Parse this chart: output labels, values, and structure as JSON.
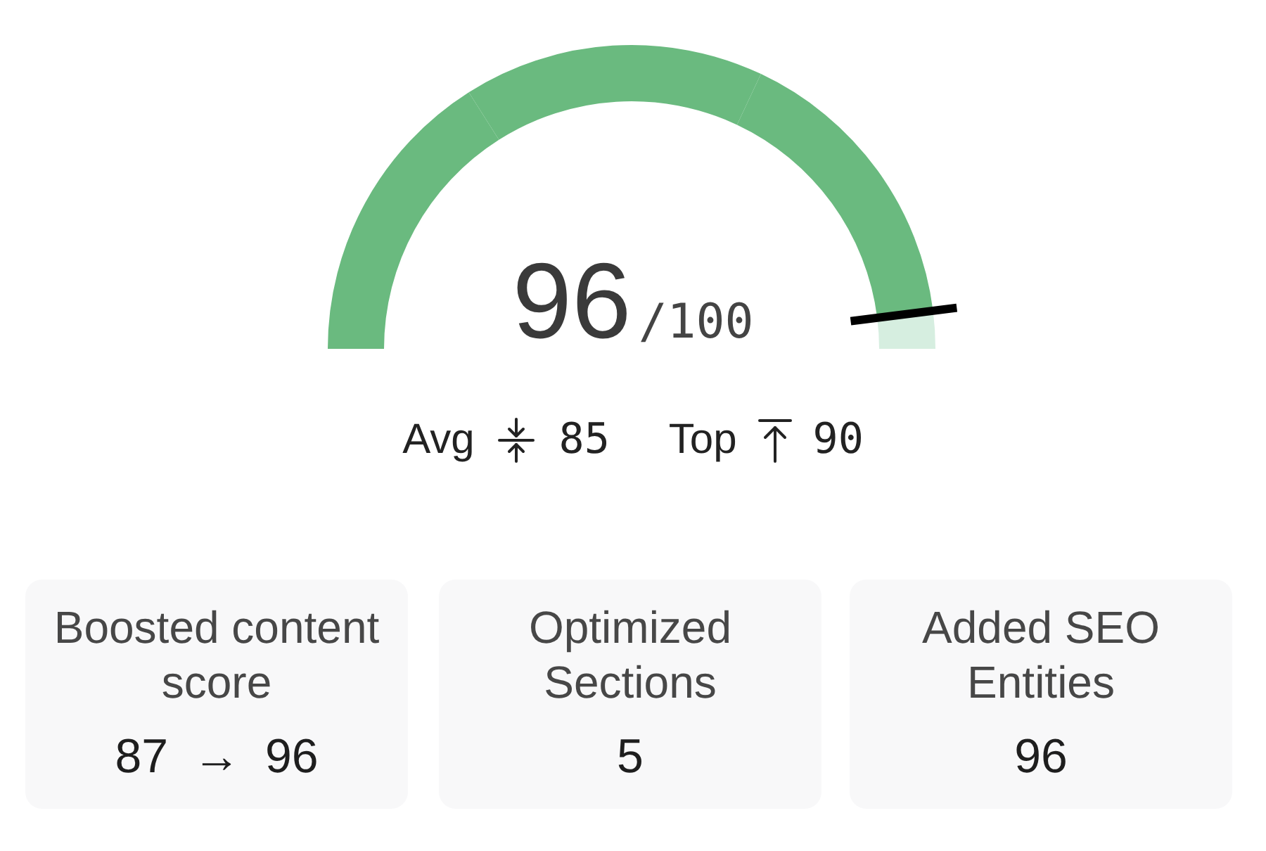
{
  "chart_data": [
    {
      "type": "donut",
      "categories": [
        null,
        null,
        null,
        null
      ],
      "values": [
        32,
        32,
        32,
        4
      ],
      "colors": [
        "#6aba7f",
        "#6aba7f",
        "#6aba7f",
        "#d6eee0"
      ],
      "annotations": [
        "96",
        "/100",
        "Avg",
        "85",
        "Top",
        "90"
      ]
    },
    {
      "type": "other",
      "title": "Boosted content score",
      "annotations": [
        "87 → 96"
      ]
    },
    {
      "type": "other",
      "title": "Optimized Sections",
      "annotations": [
        "5"
      ]
    },
    {
      "type": "other",
      "title": "Added SEO Entities",
      "annotations": [
        "96"
      ]
    }
  ]
}
